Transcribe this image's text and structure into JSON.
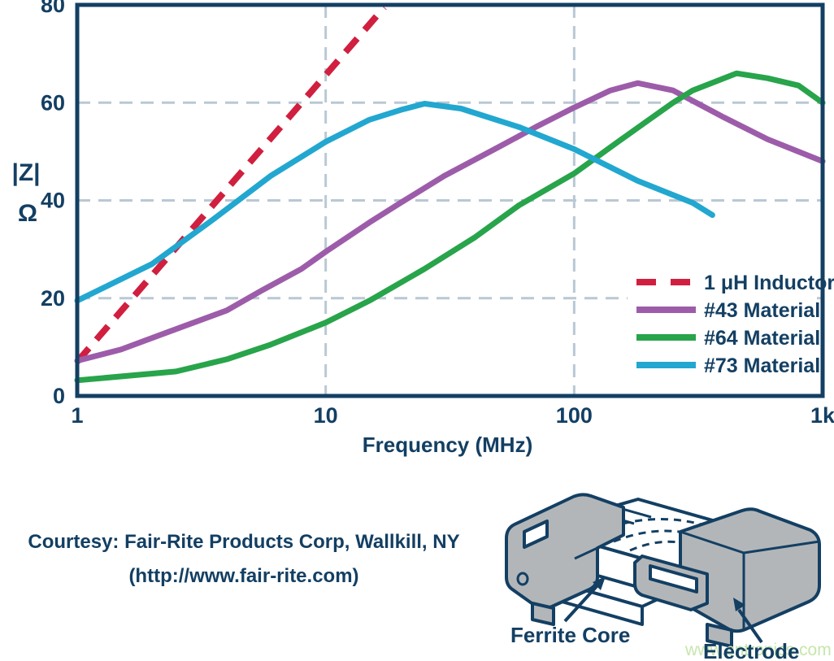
{
  "chart_data": {
    "type": "line",
    "title": "",
    "xlabel": "Frequency (MHz)",
    "ylabel_lines": [
      "|Z|",
      "Ω"
    ],
    "x_scale": "log",
    "xlim": [
      1,
      1000
    ],
    "ylim": [
      0,
      80
    ],
    "x_ticks": [
      {
        "value": 1,
        "label": "1"
      },
      {
        "value": 10,
        "label": "10"
      },
      {
        "value": 100,
        "label": "100"
      },
      {
        "value": 1000,
        "label": "1k"
      }
    ],
    "y_ticks": [
      {
        "value": 0,
        "label": "0"
      },
      {
        "value": 20,
        "label": "20"
      },
      {
        "value": 40,
        "label": "40"
      },
      {
        "value": 60,
        "label": "60"
      },
      {
        "value": 80,
        "label": "80"
      }
    ],
    "x_gridlines": [
      10,
      100
    ],
    "y_gridlines": [
      20,
      40,
      60
    ],
    "grid_on": true,
    "legend_position": "inside-right",
    "grid_color": "#b9c8d4",
    "axis_color": "#133f63",
    "text_color": "#133f63",
    "series": [
      {
        "name": "1 μH Inductor",
        "color": "#d01f3f",
        "dash": true,
        "points": [
          [
            1,
            7
          ],
          [
            17.2,
            79.5
          ]
        ]
      },
      {
        "name": "#43 Material",
        "color": "#9d5ca9",
        "dash": false,
        "points": [
          [
            1,
            7.2
          ],
          [
            1.5,
            9.5
          ],
          [
            2.3,
            13
          ],
          [
            4,
            17.5
          ],
          [
            5.5,
            21.5
          ],
          [
            8,
            26
          ],
          [
            10,
            29.5
          ],
          [
            15,
            35.5
          ],
          [
            20,
            39.5
          ],
          [
            30,
            45
          ],
          [
            50,
            51
          ],
          [
            70,
            55
          ],
          [
            100,
            59
          ],
          [
            140,
            62.5
          ],
          [
            180,
            64
          ],
          [
            250,
            62.5
          ],
          [
            400,
            57
          ],
          [
            600,
            52.5
          ],
          [
            1000,
            48
          ]
        ]
      },
      {
        "name": "#64 Material",
        "color": "#28a44b",
        "dash": false,
        "points": [
          [
            1,
            3.2
          ],
          [
            2.5,
            5
          ],
          [
            4,
            7.5
          ],
          [
            6,
            10.5
          ],
          [
            10,
            15
          ],
          [
            15,
            19.5
          ],
          [
            25,
            26
          ],
          [
            40,
            32.5
          ],
          [
            60,
            39
          ],
          [
            100,
            45.5
          ],
          [
            150,
            52
          ],
          [
            200,
            56.5
          ],
          [
            250,
            60
          ],
          [
            300,
            62.5
          ],
          [
            450,
            66
          ],
          [
            600,
            65
          ],
          [
            800,
            63.5
          ],
          [
            1000,
            60
          ]
        ]
      },
      {
        "name": "#73 Material",
        "color": "#22a7d0",
        "dash": false,
        "points": [
          [
            1,
            19.5
          ],
          [
            2,
            27
          ],
          [
            3.5,
            36
          ],
          [
            6,
            45
          ],
          [
            10,
            52
          ],
          [
            15,
            56.5
          ],
          [
            20,
            58.5
          ],
          [
            25,
            59.8
          ],
          [
            35,
            58.8
          ],
          [
            60,
            55
          ],
          [
            100,
            50.5
          ],
          [
            180,
            44
          ],
          [
            300,
            39.5
          ],
          [
            360,
            37
          ]
        ]
      }
    ]
  },
  "caption": {
    "line1": "Courtesy: Fair-Rite Products Corp, Wallkill, NY",
    "line2": "(http://www.fair-rite.com)"
  },
  "illustration": {
    "label_ferrite": "Ferrite Core",
    "label_electrode": "Electrode",
    "gray": "#b3b6b8",
    "outline": "#133f63"
  },
  "watermark": {
    "text": "www.cntronics.com",
    "color": "#c7e6ab"
  }
}
